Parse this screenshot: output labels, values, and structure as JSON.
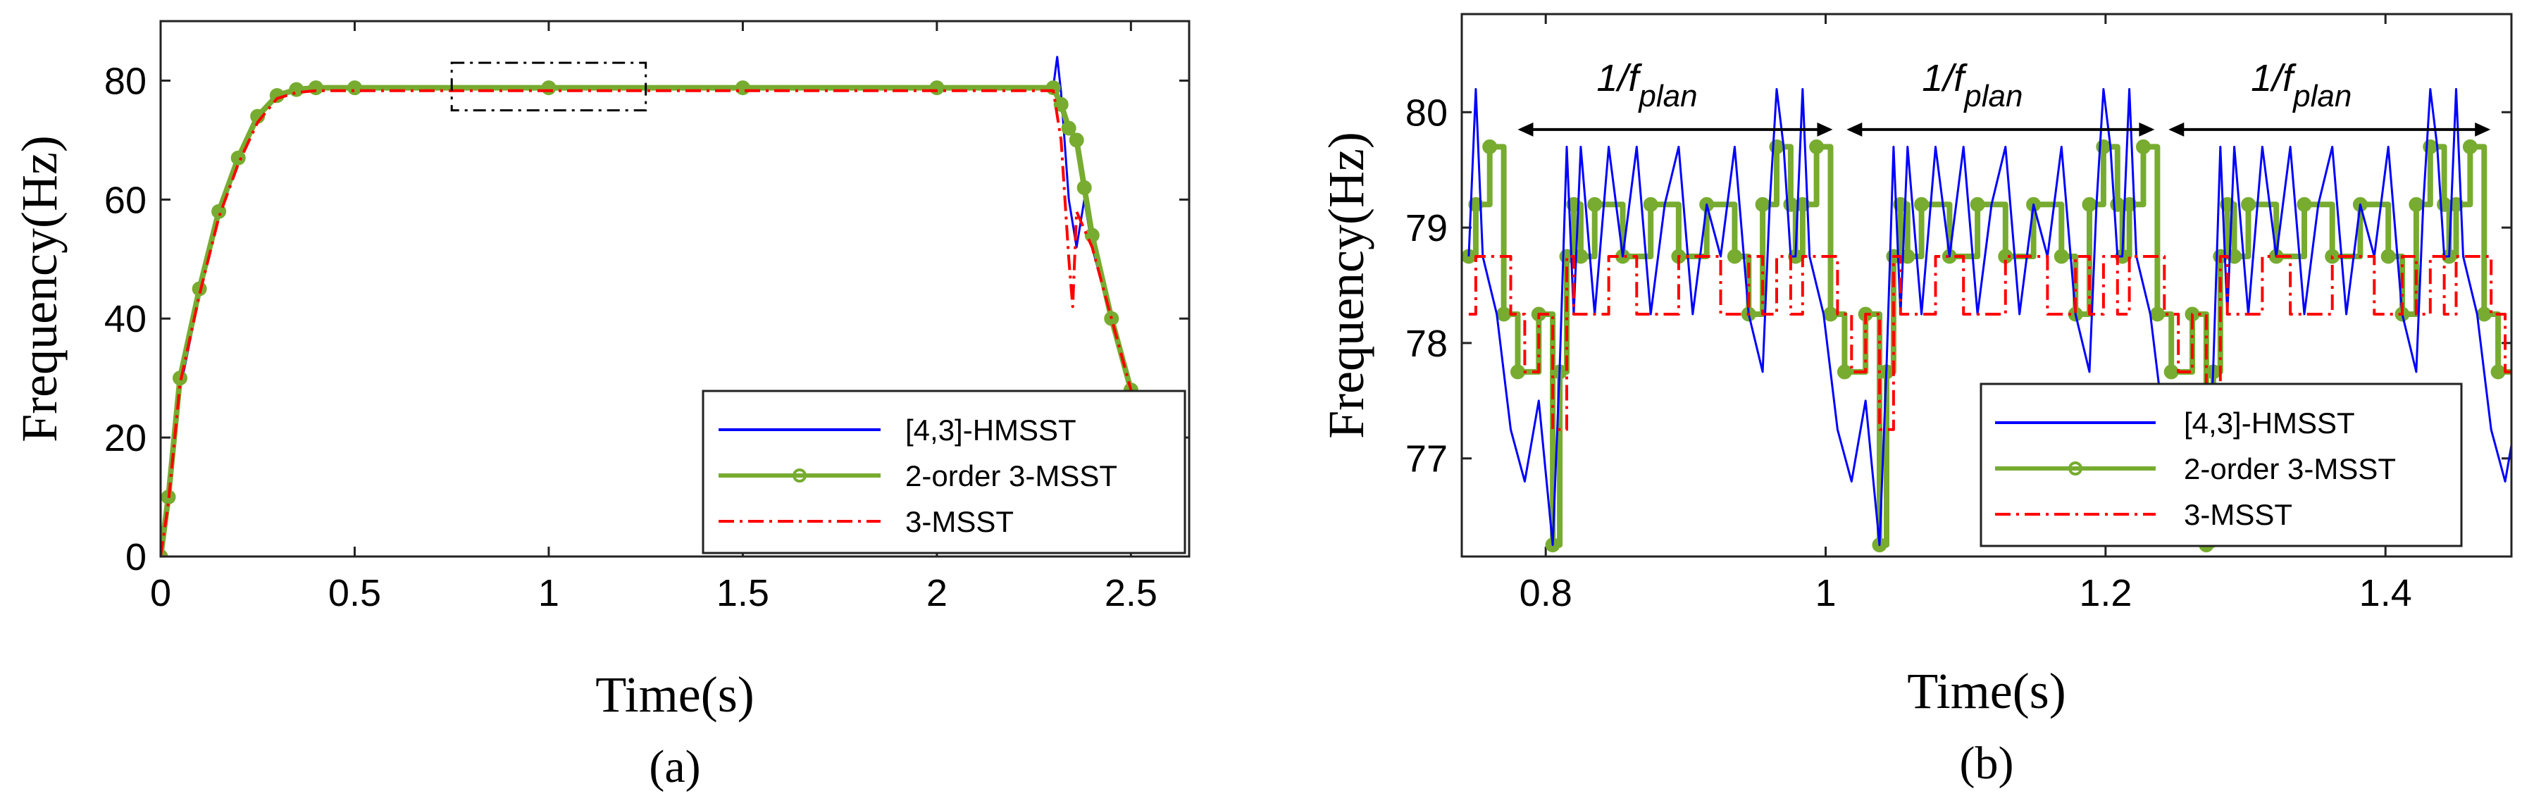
{
  "chart_data": [
    {
      "panel": "a",
      "type": "line",
      "caption": "(a)",
      "xlabel": "Time(s)",
      "ylabel": "Frequency(Hz)",
      "xlim": [
        0,
        2.65
      ],
      "ylim": [
        0,
        90
      ],
      "xticks": [
        0,
        0.5,
        1,
        1.5,
        2,
        2.5
      ],
      "xtick_labels": [
        "0",
        "0.5",
        "1",
        "1.5",
        "2",
        "2.5"
      ],
      "yticks": [
        0,
        20,
        40,
        60,
        80
      ],
      "ytick_labels": [
        "0",
        "20",
        "40",
        "60",
        "80"
      ],
      "zoom_box": {
        "x": [
          0.75,
          1.25
        ],
        "y": [
          75,
          83
        ]
      },
      "legend": {
        "placement": "bottom-right",
        "entries": [
          "[4,3]-HMSST",
          "2-order 3-MSST",
          "3-MSST"
        ]
      },
      "series": [
        {
          "name": "[4,3]-HMSST",
          "color": "#0000ff",
          "style": "solid",
          "x": [
            0,
            0.02,
            0.05,
            0.1,
            0.15,
            0.2,
            0.25,
            0.3,
            0.35,
            0.4,
            0.5,
            1.0,
            1.5,
            2.0,
            2.28,
            2.3,
            2.31,
            2.32,
            2.34,
            2.36,
            2.38,
            2.4,
            2.45,
            2.5
          ],
          "values": [
            0,
            8,
            28,
            44,
            58,
            67,
            74,
            77.5,
            78.5,
            78.8,
            78.8,
            78.8,
            78.8,
            78.8,
            78.8,
            79,
            84,
            78,
            60,
            52,
            60,
            52,
            40,
            28
          ]
        },
        {
          "name": "2-order 3-MSST",
          "color": "#77ac30",
          "style": "solid-circle-markers",
          "x": [
            0,
            0.02,
            0.05,
            0.1,
            0.15,
            0.2,
            0.25,
            0.3,
            0.35,
            0.4,
            0.5,
            1.0,
            1.5,
            2.0,
            2.3,
            2.32,
            2.34,
            2.36,
            2.38,
            2.4,
            2.45,
            2.5
          ],
          "values": [
            0,
            10,
            30,
            45,
            58,
            67,
            74,
            77.5,
            78.5,
            78.8,
            78.8,
            78.8,
            78.8,
            78.8,
            78.8,
            76,
            72,
            70,
            62,
            54,
            40,
            28
          ]
        },
        {
          "name": "3-MSST",
          "color": "#ff0000",
          "style": "dash-dot",
          "x": [
            0,
            0.02,
            0.05,
            0.1,
            0.15,
            0.2,
            0.25,
            0.3,
            0.35,
            0.4,
            0.5,
            1.0,
            1.5,
            2.0,
            2.3,
            2.32,
            2.34,
            2.35,
            2.36,
            2.38,
            2.4,
            2.45,
            2.5
          ],
          "values": [
            0,
            9,
            29,
            44,
            57,
            66,
            73,
            77,
            78,
            78.3,
            78.3,
            78.3,
            78.3,
            78.3,
            78.3,
            70,
            50,
            42,
            58,
            55,
            52,
            40,
            28
          ]
        }
      ]
    },
    {
      "panel": "b",
      "type": "line",
      "caption": "(b)",
      "xlabel": "Time(s)",
      "ylabel": "Frequency(Hz)",
      "xlim": [
        0.74,
        1.49
      ],
      "ylim": [
        76.15,
        80.85
      ],
      "xticks": [
        0.8,
        1.0,
        1.2,
        1.4
      ],
      "xtick_labels": [
        "0.8",
        "1",
        "1.2",
        "1.4"
      ],
      "yticks": [
        77,
        78,
        79,
        80
      ],
      "ytick_labels": [
        "77",
        "78",
        "79",
        "80"
      ],
      "annotations": [
        {
          "text": "1/f",
          "subscript": "plan",
          "from": 0.78,
          "to": 1.005,
          "y": 79.85
        },
        {
          "text": "1/f",
          "subscript": "plan",
          "from": 1.015,
          "to": 1.235,
          "y": 79.85
        },
        {
          "text": "1/f",
          "subscript": "plan",
          "from": 1.245,
          "to": 1.475,
          "y": 79.85
        }
      ],
      "legend": {
        "placement": "bottom-right",
        "entries": [
          "[4,3]-HMSST",
          "2-order 3-MSST",
          "3-MSST"
        ]
      },
      "period_start": 0.745,
      "period": 0.2335,
      "series": [
        {
          "name": "[4,3]-HMSST",
          "color": "#0000ff",
          "style": "solid",
          "pattern_x": [
            0,
            0.005,
            0.01,
            0.02,
            0.03,
            0.04,
            0.05,
            0.06,
            0.065,
            0.07,
            0.075,
            0.08,
            0.09,
            0.1,
            0.11,
            0.12,
            0.13,
            0.14,
            0.15,
            0.16,
            0.17,
            0.18,
            0.19,
            0.2,
            0.21,
            0.215,
            0.22,
            0.225,
            0.23
          ],
          "pattern_values": [
            78.75,
            80.2,
            78.75,
            78.25,
            77.25,
            76.8,
            77.5,
            76.25,
            77.8,
            79.7,
            78.25,
            79.7,
            78.25,
            79.7,
            78.75,
            79.7,
            78.25,
            79.2,
            79.7,
            78.25,
            79.2,
            78.75,
            79.7,
            78.25,
            77.75,
            79.2,
            80.2,
            79.7,
            78.75
          ]
        },
        {
          "name": "2-order 3-MSST",
          "color": "#77ac30",
          "style": "solid-circle-markers",
          "pattern_x": [
            0,
            0.005,
            0.015,
            0.025,
            0.035,
            0.05,
            0.06,
            0.065,
            0.07,
            0.075,
            0.08,
            0.09,
            0.11,
            0.13,
            0.15,
            0.17,
            0.19,
            0.2,
            0.21,
            0.22,
            0.23
          ],
          "pattern_values": [
            78.75,
            79.2,
            79.7,
            78.25,
            77.75,
            78.25,
            76.25,
            77.75,
            78.75,
            79.2,
            78.75,
            79.2,
            78.75,
            79.2,
            78.75,
            79.2,
            78.75,
            78.25,
            79.2,
            79.7,
            79.2
          ]
        },
        {
          "name": "3-MSST",
          "color": "#ff0000",
          "style": "dash-dot",
          "pattern_x": [
            0,
            0.005,
            0.03,
            0.04,
            0.05,
            0.06,
            0.07,
            0.075,
            0.1,
            0.12,
            0.15,
            0.18,
            0.2,
            0.21,
            0.22,
            0.23
          ],
          "pattern_values": [
            78.25,
            78.75,
            78.25,
            77.75,
            78.25,
            77.25,
            78.75,
            78.25,
            78.75,
            78.25,
            78.75,
            78.25,
            78.75,
            78.25,
            78.75,
            78.25
          ]
        }
      ]
    }
  ]
}
